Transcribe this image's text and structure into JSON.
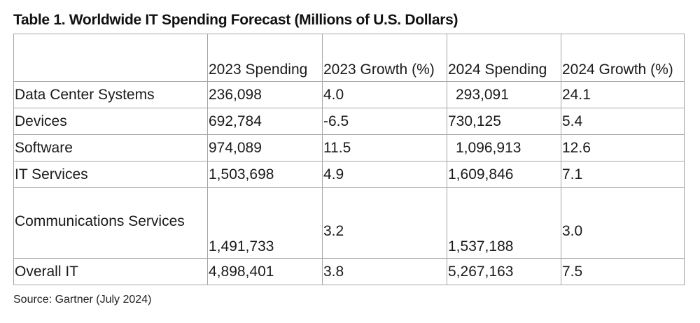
{
  "title": "Table 1. Worldwide IT Spending Forecast (Millions of U.S. Dollars)",
  "table": {
    "headers": [
      "",
      "2023 Spending",
      "2023 Growth (%)",
      "2024 Spending",
      "2024 Growth (%)"
    ],
    "rows": [
      [
        "Data Center Systems",
        "236,098",
        "4.0",
        "293,091",
        "24.1"
      ],
      [
        "Devices",
        "692,784",
        "-6.5",
        "730,125",
        "5.4"
      ],
      [
        "Software",
        "974,089",
        "11.5",
        "1,096,913",
        "12.6"
      ],
      [
        "IT Services",
        "1,503,698",
        "4.9",
        "1,609,846",
        "7.1"
      ],
      [
        "Communications Services",
        "1,491,733",
        "3.2",
        "1,537,188",
        "3.0"
      ],
      [
        "Overall IT",
        "4,898,401",
        "3.8",
        "5,267,163",
        "7.5"
      ]
    ]
  },
  "source": "Source: Gartner (July 2024)"
}
